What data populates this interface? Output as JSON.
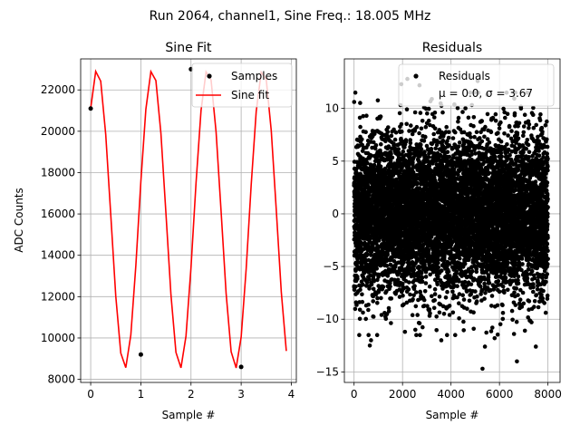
{
  "suptitle": "Run 2064, channel1, Sine Freq.: 18.005 MHz",
  "chart_data": [
    {
      "type": "line",
      "title": "Sine Fit",
      "xlabel": "Sample #",
      "ylabel": "ADC Counts",
      "xlim": [
        -0.2,
        4.1
      ],
      "ylim": [
        7850,
        23500
      ],
      "xticks": [
        0,
        1,
        2,
        3,
        4
      ],
      "yticks": [
        8000,
        10000,
        12000,
        14000,
        16000,
        18000,
        20000,
        22000
      ],
      "grid": true,
      "legend": {
        "placement": "top-right",
        "entries": [
          "Samples",
          "Sine fit"
        ]
      },
      "series": [
        {
          "name": "Samples",
          "style": "points",
          "color": "#000000",
          "x": [
            0,
            1,
            2,
            3
          ],
          "y": [
            21100,
            9200,
            23000,
            8600
          ]
        },
        {
          "name": "Sine fit",
          "style": "line",
          "color": "#ff0000",
          "model": {
            "mean": 15760,
            "amplitude": 7240,
            "cycles_per_sample": 0.9076,
            "phase_at_zero": 0.832
          },
          "x_range": [
            0,
            3.9
          ],
          "n_points": 40
        }
      ]
    },
    {
      "type": "scatter",
      "title": "Residuals",
      "xlabel": "Sample #",
      "xlim": [
        -400,
        8500
      ],
      "ylim": [
        -16,
        14.7
      ],
      "xticks": [
        0,
        2000,
        4000,
        6000,
        8000
      ],
      "yticks": [
        -15,
        -10,
        -5,
        0,
        5,
        10
      ],
      "grid": true,
      "legend": {
        "placement": "top-right",
        "entries": [
          "Residuals",
          "μ = 0.0, σ = 3.67"
        ]
      },
      "stats": {
        "mean": 0.0,
        "sigma": 3.67,
        "n_samples": 8000
      },
      "color": "#000000",
      "outliers": [
        [
          5300,
          -14.7
        ],
        [
          6720,
          -14.0
        ],
        [
          2200,
          12.8
        ],
        [
          2700,
          12.2
        ],
        [
          1950,
          12.3
        ],
        [
          5100,
          12.6
        ],
        [
          5500,
          11.3
        ],
        [
          650,
          -12.5
        ],
        [
          700,
          -12.0
        ],
        [
          5400,
          -12.6
        ],
        [
          5800,
          -11.8
        ],
        [
          3600,
          -12.0
        ],
        [
          7500,
          -12.6
        ],
        [
          2100,
          -11.2
        ],
        [
          6600,
          -11.4
        ]
      ]
    }
  ]
}
